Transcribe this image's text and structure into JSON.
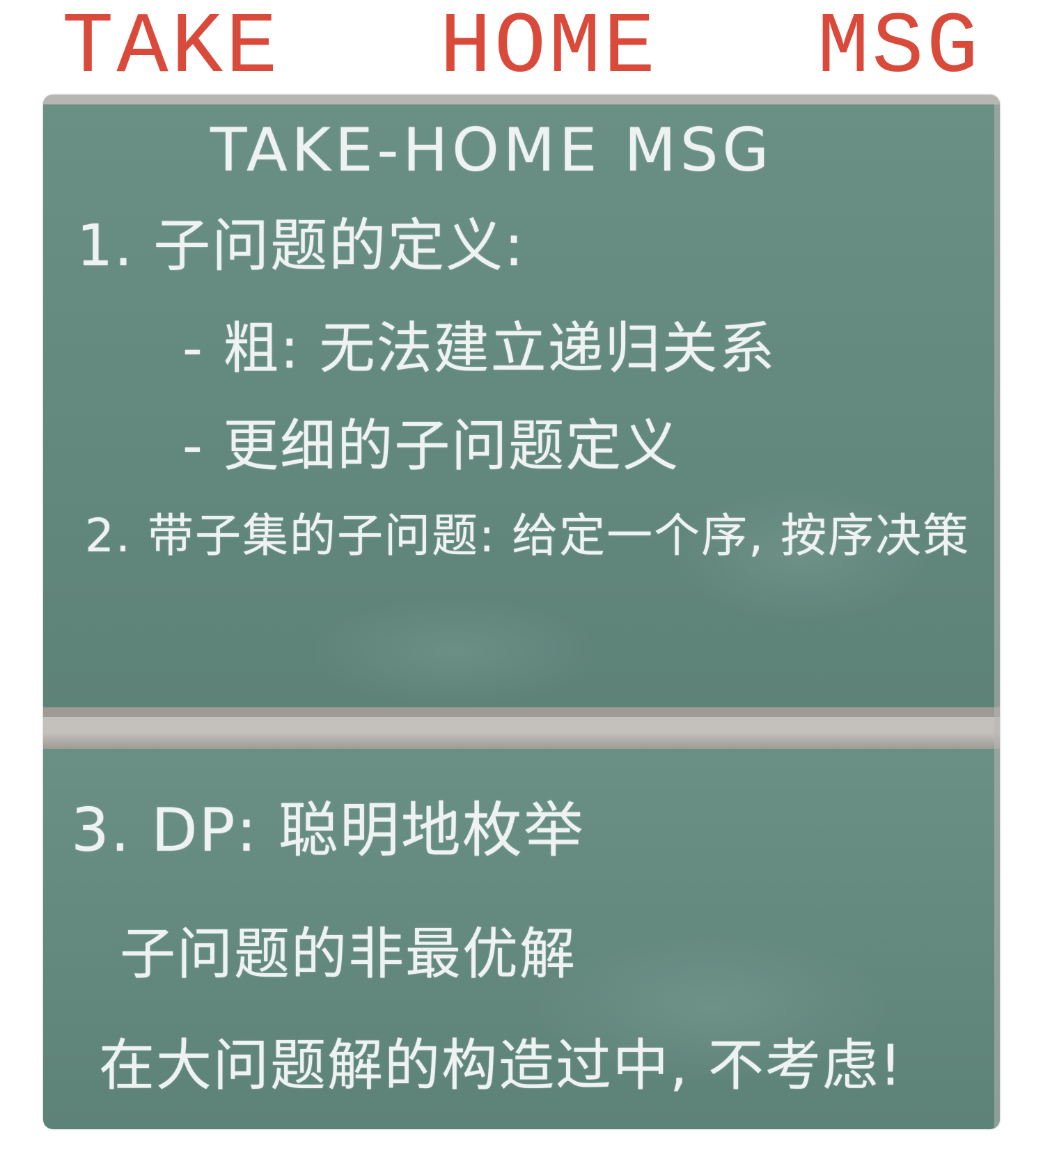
{
  "title": "TAKE  HOME  MSG",
  "colors": {
    "title": "#d94a3a",
    "board": "#6a9086",
    "board_dark": "#5d8278",
    "chalk": "#eef3f1",
    "tray": "#c4c1bd",
    "tray_shadow": "#9e9b97",
    "frame": "#b8b6b3"
  },
  "board_upper": {
    "heading": "TAKE-HOME MSG",
    "item1": "1. 子问题的定义:",
    "item1_sub1": "- 粗: 无法建立递归关系",
    "item1_sub2": "- 更细的子问题定义",
    "item2": "2. 带子集的子问题: 给定一个序, 按序决策"
  },
  "board_lower": {
    "item3": "3. DP: 聪明地枚举",
    "item3_line1": "子问题的非最优解",
    "item3_line2": "在大问题解的构造过中, 不考虑!"
  }
}
